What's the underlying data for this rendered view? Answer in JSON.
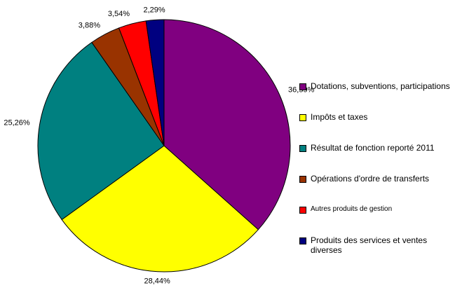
{
  "chart_data": {
    "type": "pie",
    "categories": [
      "Dotations, subventions, participations",
      "Impôts et taxes",
      "Résultat de fonction reporté 2011",
      "Opérations d'ordre de transferts",
      "Autres produits de gestion",
      "Produits des services et ventes diverses"
    ],
    "values": [
      36.59,
      28.44,
      25.26,
      3.88,
      3.54,
      2.29
    ],
    "value_labels": [
      "36,59%",
      "28,44%",
      "25,26%",
      "3,88%",
      "3,54%",
      "2,29%"
    ],
    "colors": [
      "#800080",
      "#ffff00",
      "#008080",
      "#993300",
      "#ff0000",
      "#000080"
    ],
    "legend": "right"
  }
}
